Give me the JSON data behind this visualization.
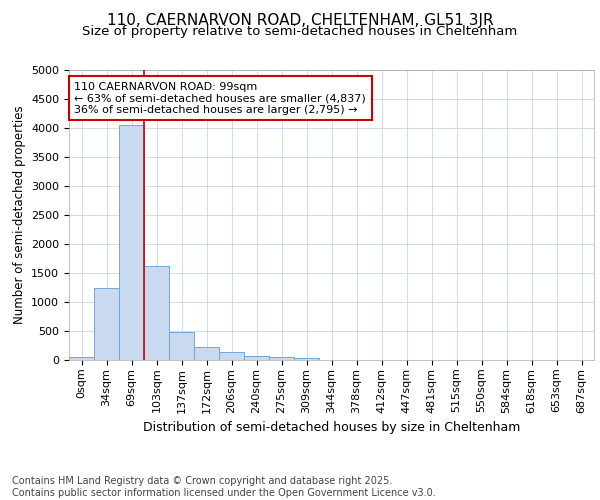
{
  "title1": "110, CAERNARVON ROAD, CHELTENHAM, GL51 3JR",
  "title2": "Size of property relative to semi-detached houses in Cheltenham",
  "xlabel": "Distribution of semi-detached houses by size in Cheltenham",
  "ylabel": "Number of semi-detached properties",
  "categories": [
    "0sqm",
    "34sqm",
    "69sqm",
    "103sqm",
    "137sqm",
    "172sqm",
    "206sqm",
    "240sqm",
    "275sqm",
    "309sqm",
    "344sqm",
    "378sqm",
    "412sqm",
    "447sqm",
    "481sqm",
    "515sqm",
    "550sqm",
    "584sqm",
    "618sqm",
    "653sqm",
    "687sqm"
  ],
  "values": [
    50,
    1250,
    4050,
    1620,
    480,
    220,
    130,
    70,
    50,
    30,
    0,
    0,
    0,
    0,
    0,
    0,
    0,
    0,
    0,
    0,
    0
  ],
  "bar_color": "#c9daf0",
  "bar_edge_color": "#6fa8dc",
  "grid_color": "#c8d4e8",
  "vline_color": "#cc0000",
  "annotation_text": "110 CAERNARVON ROAD: 99sqm\n← 63% of semi-detached houses are smaller (4,837)\n36% of semi-detached houses are larger (2,795) →",
  "annotation_box_color": "#ffffff",
  "annotation_box_edge": "#cc0000",
  "ylim": [
    0,
    5000
  ],
  "yticks": [
    0,
    500,
    1000,
    1500,
    2000,
    2500,
    3000,
    3500,
    4000,
    4500,
    5000
  ],
  "footnote": "Contains HM Land Registry data © Crown copyright and database right 2025.\nContains public sector information licensed under the Open Government Licence v3.0.",
  "footnote_fontsize": 7,
  "title1_fontsize": 11,
  "title2_fontsize": 9.5,
  "xlabel_fontsize": 9,
  "ylabel_fontsize": 8.5,
  "tick_fontsize": 8,
  "annotation_fontsize": 8
}
